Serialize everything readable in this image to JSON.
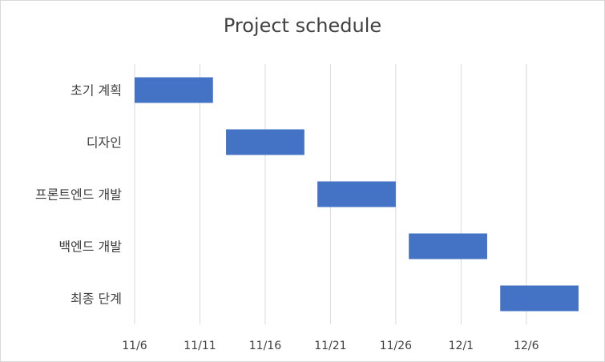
{
  "chart_data": {
    "type": "bar",
    "orientation": "horizontal",
    "subtype": "gantt",
    "title": "Project schedule",
    "xlabel": "",
    "ylabel": "",
    "categories": [
      "초기 계획",
      "디자인",
      "프론트엔드 개발",
      "백엔드 개발",
      "최종 단계"
    ],
    "tasks": [
      {
        "name": "초기 계획",
        "start": "2023-11-06",
        "end": "2023-11-12"
      },
      {
        "name": "디자인",
        "start": "2023-11-13",
        "end": "2023-11-19"
      },
      {
        "name": "프론트엔드 개발",
        "start": "2023-11-20",
        "end": "2023-11-26"
      },
      {
        "name": "백엔드 개발",
        "start": "2023-11-27",
        "end": "2023-12-03"
      },
      {
        "name": "최종 단계",
        "start": "2023-12-04",
        "end": "2023-12-10"
      }
    ],
    "x_ticks": [
      "11/6",
      "11/11",
      "11/16",
      "11/21",
      "11/26",
      "12/1",
      "12/6"
    ],
    "xlim": [
      "2023-11-06",
      "2023-12-10"
    ],
    "grid": "vertical",
    "legend": "none",
    "bar_color": "#4472c4"
  }
}
